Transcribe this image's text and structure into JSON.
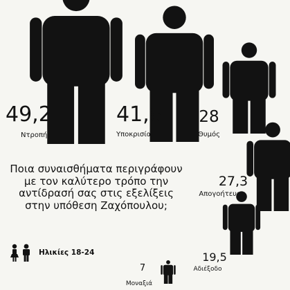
{
  "chart_data": {
    "type": "pictogram",
    "title": "Ποια συναισθήματα περιγράφουν με τον καλύτερο τρόπο την αντίδρασή σας στις εξελίξεις στην υπόθεση Ζαχόπουλου;",
    "legend": {
      "label": "Ηλικίες 18-24"
    },
    "categories": [
      "Ντροπή",
      "Υποκρισία",
      "Θυμός",
      "Απογοήτευση",
      "Αδιέξοδο",
      "Μοναξιά"
    ],
    "values": [
      49.2,
      41.8,
      28,
      27.3,
      19.5,
      7
    ],
    "value_labels": [
      "49,2",
      "41,8",
      "28",
      "27,3",
      "19,5",
      "7"
    ],
    "series": [
      {
        "values": [
          49.2,
          41.8,
          28,
          27.3,
          19.5,
          7
        ]
      }
    ]
  },
  "colors": {
    "figure": "#121212",
    "background": "#f6f6f2"
  }
}
